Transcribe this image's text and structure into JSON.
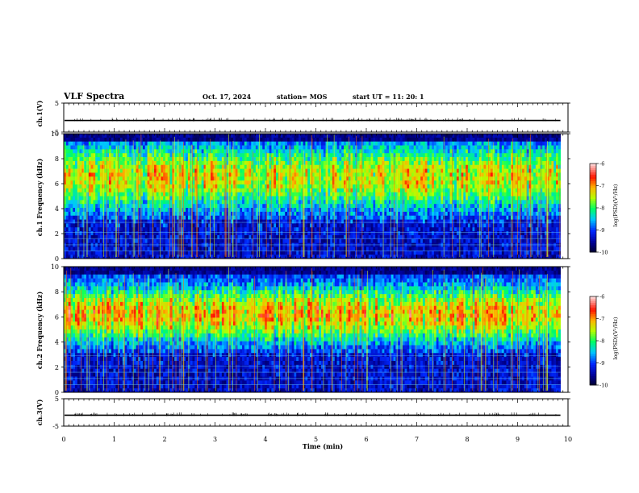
{
  "header": {
    "title": "VLF Spectra",
    "date": "Oct. 17, 2024",
    "station": "station= MOS",
    "start": "start  UT =   11: 20: 1"
  },
  "chart_data": [
    {
      "type": "line",
      "title": "",
      "ylabel": "ch.1(V)",
      "ylim": [
        -5,
        5
      ],
      "yticks": [
        "5",
        "-5"
      ],
      "series": [
        {
          "values_summary": "flat trace near -1 V with small spikes",
          "level": -1
        }
      ]
    },
    {
      "type": "heatmap",
      "ylabel": "ch.1  Frequency (kHz)",
      "ylim": [
        0,
        10
      ],
      "yticks": [
        "0",
        "2",
        "4",
        "6",
        "8",
        "10"
      ],
      "colorbar": {
        "label": "log(PSD)(V²/Hz)",
        "range": [
          -10,
          -6
        ],
        "ticks": [
          "-6",
          "-7",
          "-8",
          "-9",
          "-10"
        ]
      },
      "colors": [
        "#00006e",
        "#0000ff",
        "#00c8ff",
        "#00ff64",
        "#c8ff00",
        "#ffa000",
        "#ff0000",
        "#ffc8c8"
      ]
    },
    {
      "type": "heatmap",
      "ylabel": "ch.2  Frequency (kHz)",
      "ylim": [
        0,
        10
      ],
      "yticks": [
        "0",
        "2",
        "4",
        "6",
        "8",
        "10"
      ],
      "colorbar": {
        "label": "log(PSD)(V²/Hz)",
        "range": [
          -10,
          -6
        ],
        "ticks": [
          "-6",
          "-7",
          "-8",
          "-9",
          "-10"
        ]
      },
      "colors": [
        "#00006e",
        "#0000ff",
        "#00c8ff",
        "#00ff64",
        "#c8ff00",
        "#ffa000",
        "#ff0000",
        "#ffc8c8"
      ]
    },
    {
      "type": "line",
      "ylabel": "ch.3(V)",
      "ylim": [
        -5,
        5
      ],
      "yticks": [
        "5",
        "-5"
      ],
      "series": [
        {
          "values_summary": "flat trace near -1 V with small spikes",
          "level": -1
        }
      ]
    }
  ],
  "xaxis": {
    "label": "Time  (min)",
    "xlim": [
      0,
      10
    ],
    "ticks": [
      "0",
      "1",
      "2",
      "3",
      "4",
      "5",
      "6",
      "7",
      "8",
      "9",
      "10"
    ]
  }
}
